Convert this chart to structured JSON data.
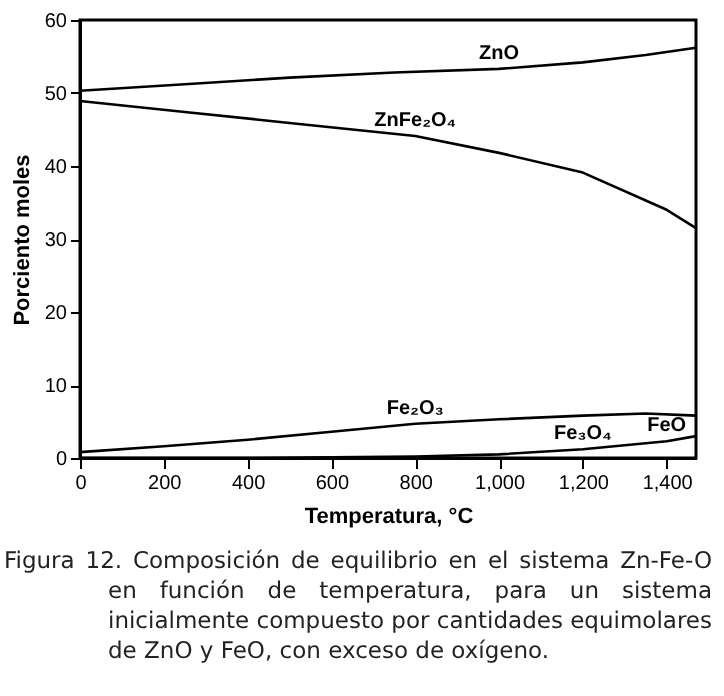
{
  "chart_data": {
    "type": "line",
    "xlabel": "Temperatura, °C",
    "ylabel": "Porciento moles",
    "xlim": [
      0,
      1470
    ],
    "ylim": [
      0,
      60
    ],
    "xticks": [
      0,
      200,
      400,
      600,
      800,
      {
        "value": 1000,
        "label": "1,000"
      },
      {
        "value": 1200,
        "label": "1,200"
      },
      {
        "value": 1400,
        "label": "1,400"
      }
    ],
    "yticks": [
      0,
      10,
      20,
      30,
      40,
      50,
      60
    ],
    "grid": false,
    "marker": "none",
    "line_style": "solid",
    "series": [
      {
        "color": "#000000",
        "x": [
          0,
          250,
          500,
          750,
          1000,
          1200,
          1350,
          1470
        ],
        "values": [
          50.3,
          51.2,
          52.1,
          52.8,
          53.3,
          54.2,
          55.2,
          56.2
        ]
      },
      {
        "color": "#000000",
        "x": [
          0,
          250,
          500,
          800,
          1000,
          1200,
          1400,
          1470
        ],
        "values": [
          48.9,
          47.4,
          45.9,
          44.1,
          41.8,
          39.1,
          34.0,
          31.5
        ]
      },
      {
        "color": "#000000",
        "x": [
          0,
          200,
          400,
          600,
          800,
          1000,
          1200,
          1350,
          1470
        ],
        "values": [
          0.8,
          1.6,
          2.5,
          3.6,
          4.7,
          5.3,
          5.8,
          6.1,
          5.8
        ]
      },
      {
        "color": "#000000",
        "x": [
          0,
          400,
          600,
          800,
          1000,
          1200,
          1400,
          1470
        ],
        "values": [
          0,
          0,
          0.1,
          0.2,
          0.5,
          1.2,
          2.3,
          3.0
        ]
      }
    ],
    "annotations": [
      {
        "text": "ZnO",
        "x": 1000,
        "y": 53.3
      },
      {
        "text": "ZnFe₂O₄",
        "x": 800,
        "y": 44.1
      },
      {
        "text": "Fe₂O₃",
        "x": 800,
        "y": 4.7
      },
      {
        "text": "Fe₃O₄",
        "x": 1200,
        "y": 1.2
      },
      {
        "text": "FeO",
        "x": 1400,
        "y": 2.3
      },
      "Figura 12. Composición de equilibrio en el sistema Zn-Fe-O en función de temperatura, para un sistema inicialmente compuesto por cantidades equimolares de ZnO y FeO, con exceso de oxígeno."
    ]
  }
}
